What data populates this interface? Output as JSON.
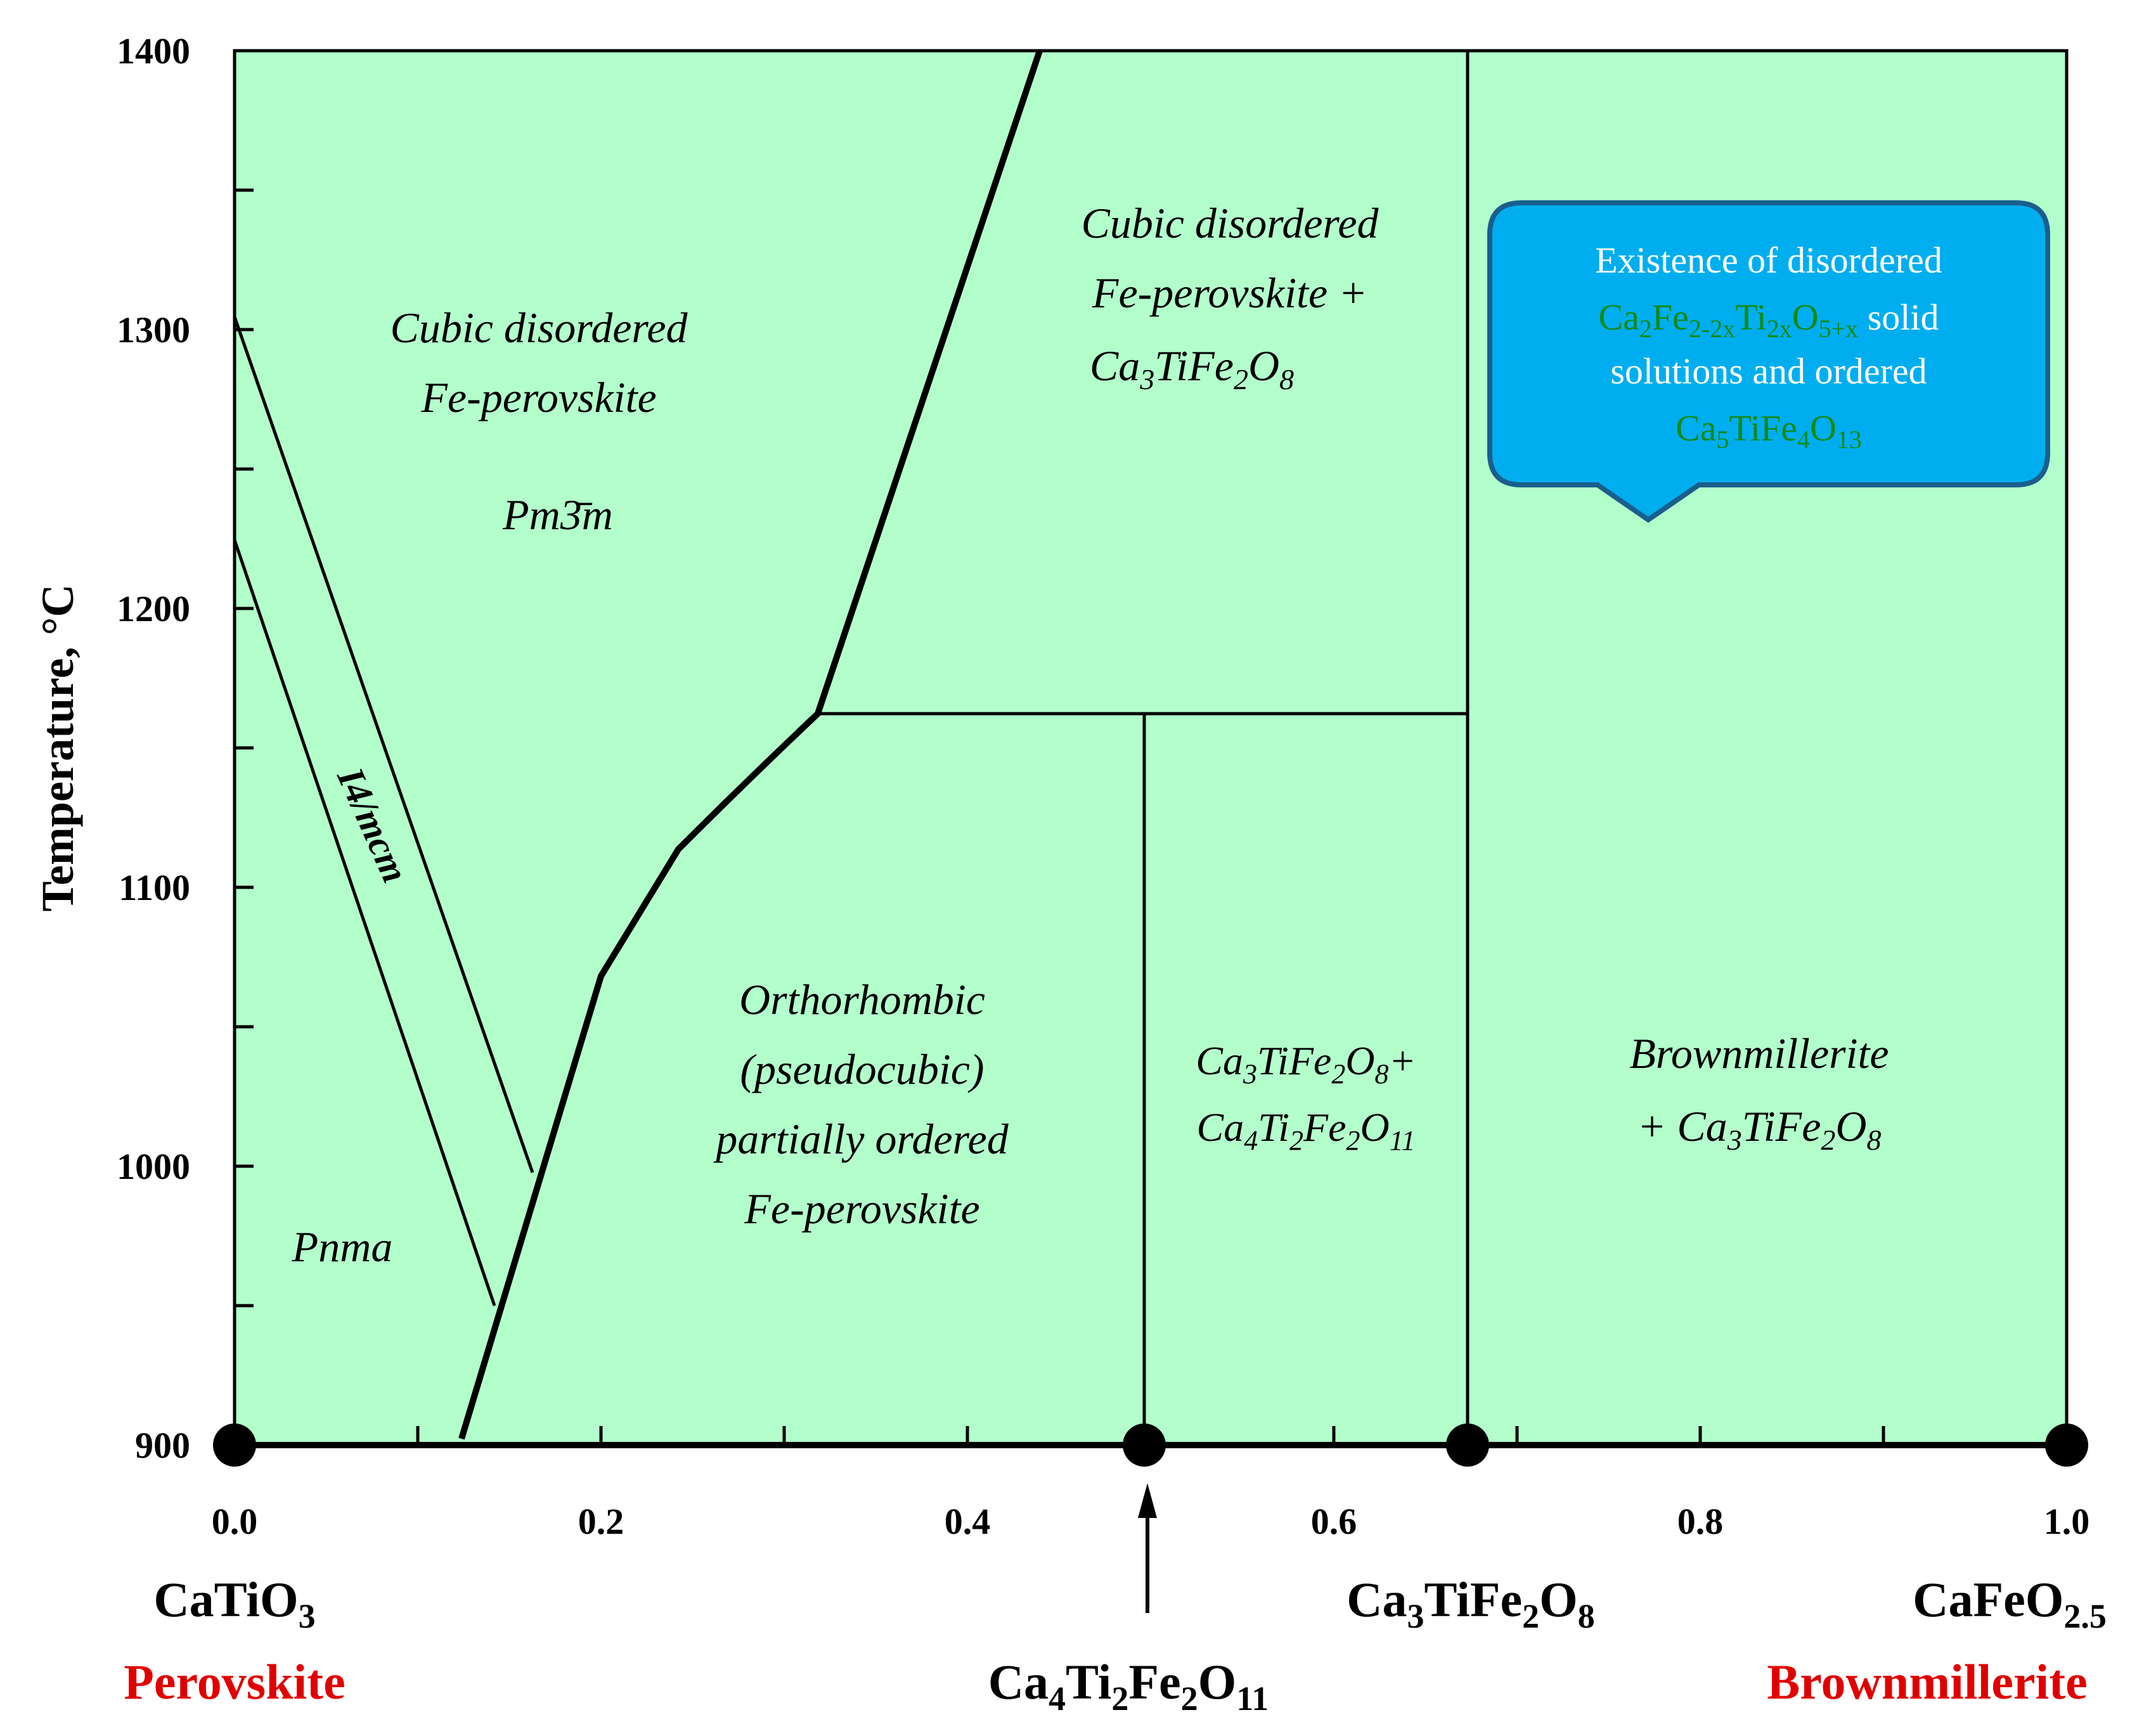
{
  "plot": {
    "background_color": "#b3ffcc",
    "y_axis_title": "Temperature, °C",
    "y_ticks": [
      "900",
      "1000",
      "1100",
      "1200",
      "1300",
      "1400"
    ],
    "x_ticks": [
      "0.0",
      "0.2",
      "0.4",
      "0.6",
      "0.8",
      "1.0"
    ]
  },
  "regions": {
    "cubic_left_1": "Cubic disordered",
    "cubic_left_2": "Fe-perovskite",
    "space_group_cubic": "Pm3̄m",
    "tetragonal": "I4/mcm",
    "pnma": "Pnma",
    "cubic_right_1": "Cubic disordered",
    "cubic_right_2": "Fe-perovskite +",
    "ortho_1": "Orthorhombic",
    "ortho_2": "(pseudocubic)",
    "ortho_3": "partially ordered",
    "ortho_4": "Fe-perovskite",
    "brownmillerite_1": "Brownmillerite",
    "brownmillerite_2": "+"
  },
  "callout": {
    "color": "#00aeef",
    "border": "#1a5f8c",
    "line1": "Existence of disordered",
    "line2_suffix": "solid",
    "line3": "solutions and ordered"
  },
  "compositions": {
    "left_formula": "CaTiO",
    "left_mineral": "Perovskite",
    "middle_formula": "Ca4Ti2Fe2O11",
    "ca3_formula": "Ca3TiFe2O8",
    "right_formula": "CaFeO2.5",
    "right_mineral": "Brownmillerite"
  }
}
